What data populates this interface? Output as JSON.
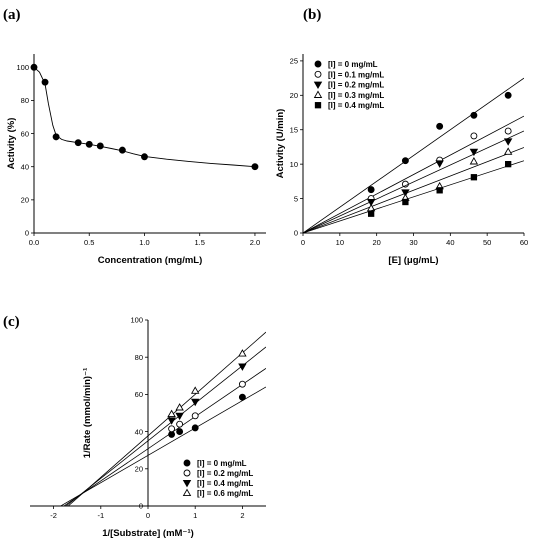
{
  "colors": {
    "ink": "#000000",
    "background": "#ffffff"
  },
  "chart_data": [
    {
      "panel_label": "(a)",
      "type": "line",
      "title": "",
      "xlabel": "Concentration (mg/mL)",
      "ylabel": "Activity (%)",
      "xlim": [
        0,
        2.1
      ],
      "ylim": [
        0,
        108
      ],
      "xticks": [
        0.0,
        0.5,
        1.0,
        1.5,
        2.0
      ],
      "xtick_labels": [
        "0.0",
        "0.5",
        "1.0",
        "1.5",
        "2.0"
      ],
      "yticks": [
        0,
        20,
        40,
        60,
        80,
        100
      ],
      "ytick_labels": [
        "0",
        "20",
        "40",
        "60",
        "80",
        "100"
      ],
      "grid": false,
      "legend": "none",
      "series": [
        {
          "marker": "filled-circle",
          "x": [
            0.0,
            0.1,
            0.2,
            0.4,
            0.5,
            0.6,
            0.8,
            1.0,
            2.0
          ],
          "y": [
            100,
            91,
            58,
            54.5,
            53.5,
            52.5,
            50,
            46,
            40
          ]
        }
      ],
      "curve": {
        "x": [
          0.0,
          0.05,
          0.1,
          0.13,
          0.17,
          0.2,
          0.25,
          0.3,
          0.4,
          0.5,
          0.6,
          0.7,
          0.8,
          0.9,
          1.0,
          1.2,
          1.4,
          1.6,
          1.8,
          2.0
        ],
        "y": [
          100,
          97,
          90,
          78,
          65,
          59,
          56.5,
          55.5,
          54.5,
          53.5,
          52.3,
          51,
          49.6,
          47.8,
          46.2,
          44.5,
          43.2,
          42,
          41,
          40
        ]
      }
    },
    {
      "panel_label": "(b)",
      "type": "scatter",
      "title": "",
      "xlabel": "[E] (μg/mL)",
      "ylabel": "Activity (U/min)",
      "xlim": [
        0,
        60
      ],
      "ylim": [
        0,
        26
      ],
      "xticks": [
        0,
        10,
        20,
        30,
        40,
        50,
        60
      ],
      "xtick_labels": [
        "0",
        "10",
        "20",
        "30",
        "40",
        "50",
        "60"
      ],
      "yticks": [
        0,
        5,
        10,
        15,
        20,
        25
      ],
      "ytick_labels": [
        "0",
        "5",
        "10",
        "15",
        "20",
        "25"
      ],
      "grid": false,
      "legend": "top-left",
      "x": [
        18.5,
        27.8,
        37.1,
        46.4,
        55.7
      ],
      "series": [
        {
          "name": "[I] = 0 mg/mL",
          "marker": "filled-circle",
          "values": [
            6.3,
            10.5,
            15.5,
            17.1,
            20.0
          ],
          "slope": 0.375
        },
        {
          "name": "[I] = 0.1 mg/mL",
          "marker": "open-circle",
          "values": [
            5.0,
            7.1,
            10.6,
            14.1,
            14.8
          ],
          "slope": 0.283
        },
        {
          "name": "[I] = 0.2 mg/mL",
          "marker": "filled-triangle-down",
          "values": [
            4.5,
            5.9,
            10.1,
            11.8,
            13.3
          ],
          "slope": 0.247
        },
        {
          "name": "[I] = 0.3 mg/mL",
          "marker": "open-triangle-up",
          "values": [
            3.6,
            5.1,
            6.8,
            10.4,
            11.8
          ],
          "slope": 0.207
        },
        {
          "name": "[I] = 0.4 mg/mL",
          "marker": "filled-square",
          "values": [
            2.8,
            4.5,
            6.2,
            8.1,
            10.0
          ],
          "slope": 0.175
        }
      ]
    },
    {
      "panel_label": "(c)",
      "type": "scatter",
      "title": "",
      "xlabel": "1/[Substrate] (mM⁻¹)",
      "ylabel": "1/Rate (mmol/min)⁻¹",
      "xlim": [
        -2.5,
        2.5
      ],
      "ylim": [
        0,
        100
      ],
      "xticks": [
        -2,
        -1,
        0,
        1,
        2
      ],
      "xtick_labels": [
        "-2",
        "-1",
        "0",
        "1",
        "2"
      ],
      "yticks": [
        0,
        20,
        40,
        60,
        80,
        100
      ],
      "ytick_labels": [
        "0",
        "20",
        "40",
        "60",
        "80",
        "100"
      ],
      "grid": false,
      "legend": "bottom-right",
      "x": [
        0.5,
        0.67,
        1.0,
        2.0
      ],
      "series": [
        {
          "name": "[I] = 0 mg/mL",
          "marker": "filled-circle",
          "values": [
            38.5,
            40.0,
            42.0,
            58.5
          ],
          "fit": {
            "x_from": -2.0,
            "x_to": 2.5,
            "y_from": -2.2,
            "y_to": 64.0
          }
        },
        {
          "name": "[I] = 0.2 mg/mL",
          "marker": "open-circle",
          "values": [
            41.5,
            44.0,
            48.5,
            65.5
          ],
          "fit": {
            "x_from": -2.0,
            "x_to": 2.5,
            "y_from": -3.8,
            "y_to": 74.0
          }
        },
        {
          "name": "[I] = 0.4 mg/mL",
          "marker": "filled-triangle-down",
          "values": [
            46.0,
            48.5,
            56.0,
            75.0
          ],
          "fit": {
            "x_from": -2.0,
            "x_to": 2.5,
            "y_from": -5.3,
            "y_to": 85.5
          }
        },
        {
          "name": "[I] = 0.6 mg/mL",
          "marker": "open-triangle-up",
          "values": [
            49.5,
            53.0,
            62.0,
            82.0
          ],
          "fit": {
            "x_from": -2.0,
            "x_to": 2.5,
            "y_from": -6.9,
            "y_to": 93.5
          }
        }
      ]
    }
  ]
}
